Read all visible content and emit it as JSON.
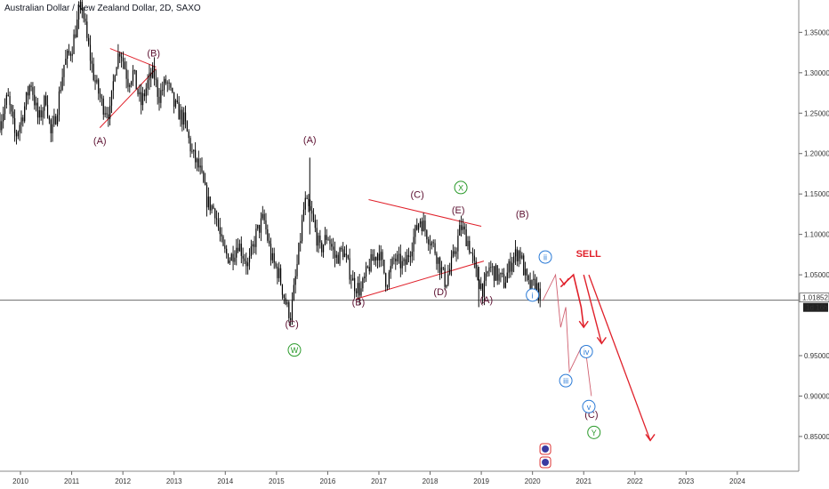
{
  "header": {
    "title": "Australian Dollar / New Zealand Dollar, 2D, SAXO"
  },
  "price_axis": {
    "current_price": "1.01852",
    "countdown": "1d 16h"
  },
  "colors": {
    "candles": "#000000",
    "wave_label": "#5c1030",
    "trendline": "#e0202a",
    "projection": "#e0202a",
    "projection_faint": "#d06070",
    "circle_green": "#2a9a2a",
    "circle_blue": "#2a7ad6",
    "sell": "#e0202a",
    "price_line": "#555555"
  },
  "chart_data": {
    "type": "candlestick",
    "title": "Australian Dollar / New Zealand Dollar, 2D, SAXO",
    "xlim": [
      2009.6,
      2025.2
    ],
    "ylim": [
      0.807,
      1.39
    ],
    "x_ticks": [
      {
        "x": 2010,
        "label": "2010"
      },
      {
        "x": 2011,
        "label": "2011"
      },
      {
        "x": 2012,
        "label": "2012"
      },
      {
        "x": 2013,
        "label": "2013"
      },
      {
        "x": 2014,
        "label": "2014"
      },
      {
        "x": 2015,
        "label": "2015"
      },
      {
        "x": 2016,
        "label": "2016"
      },
      {
        "x": 2017,
        "label": "2017"
      },
      {
        "x": 2018,
        "label": "2018"
      },
      {
        "x": 2019,
        "label": "2019"
      },
      {
        "x": 2020,
        "label": "2020"
      },
      {
        "x": 2021,
        "label": "2021"
      },
      {
        "x": 2022,
        "label": "2022"
      },
      {
        "x": 2023,
        "label": "2023"
      },
      {
        "x": 2024,
        "label": "2024"
      }
    ],
    "y_ticks": [
      {
        "y": 1.35,
        "label": "1.35000"
      },
      {
        "y": 1.3,
        "label": "1.30000"
      },
      {
        "y": 1.25,
        "label": "1.25000"
      },
      {
        "y": 1.2,
        "label": "1.20000"
      },
      {
        "y": 1.15,
        "label": "1.15000"
      },
      {
        "y": 1.1,
        "label": "1.10000"
      },
      {
        "y": 1.05,
        "label": "1.05000"
      },
      {
        "y": 0.95,
        "label": "0.95000"
      },
      {
        "y": 0.9,
        "label": "0.90000"
      },
      {
        "y": 0.85,
        "label": "0.85000"
      }
    ],
    "price_path": [
      [
        2009.6,
        1.24
      ],
      [
        2009.75,
        1.27
      ],
      [
        2009.9,
        1.22
      ],
      [
        2010.05,
        1.25
      ],
      [
        2010.2,
        1.29
      ],
      [
        2010.35,
        1.24
      ],
      [
        2010.5,
        1.27
      ],
      [
        2010.6,
        1.22
      ],
      [
        2010.7,
        1.25
      ],
      [
        2010.85,
        1.31
      ],
      [
        2011.0,
        1.33
      ],
      [
        2011.1,
        1.36
      ],
      [
        2011.2,
        1.385
      ],
      [
        2011.3,
        1.34
      ],
      [
        2011.45,
        1.29
      ],
      [
        2011.6,
        1.26
      ],
      [
        2011.75,
        1.25
      ],
      [
        2011.85,
        1.31
      ],
      [
        2011.95,
        1.33
      ],
      [
        2012.1,
        1.29
      ],
      [
        2012.2,
        1.3
      ],
      [
        2012.35,
        1.26
      ],
      [
        2012.5,
        1.29
      ],
      [
        2012.6,
        1.3
      ],
      [
        2012.7,
        1.27
      ],
      [
        2012.85,
        1.29
      ],
      [
        2013.0,
        1.26
      ],
      [
        2013.2,
        1.24
      ],
      [
        2013.35,
        1.2
      ],
      [
        2013.5,
        1.18
      ],
      [
        2013.65,
        1.14
      ],
      [
        2013.8,
        1.13
      ],
      [
        2013.95,
        1.08
      ],
      [
        2014.1,
        1.07
      ],
      [
        2014.25,
        1.09
      ],
      [
        2014.45,
        1.06
      ],
      [
        2014.6,
        1.1
      ],
      [
        2014.75,
        1.12
      ],
      [
        2014.9,
        1.07
      ],
      [
        2015.05,
        1.05
      ],
      [
        2015.2,
        1.01
      ],
      [
        2015.28,
        1.0
      ],
      [
        2015.4,
        1.06
      ],
      [
        2015.55,
        1.14
      ],
      [
        2015.7,
        1.12
      ],
      [
        2015.85,
        1.08
      ],
      [
        2016.0,
        1.1
      ],
      [
        2016.15,
        1.07
      ],
      [
        2016.3,
        1.08
      ],
      [
        2016.5,
        1.04
      ],
      [
        2016.65,
        1.03
      ],
      [
        2016.8,
        1.06
      ],
      [
        2017.0,
        1.08
      ],
      [
        2017.15,
        1.04
      ],
      [
        2017.3,
        1.07
      ],
      [
        2017.5,
        1.06
      ],
      [
        2017.65,
        1.09
      ],
      [
        2017.8,
        1.12
      ],
      [
        2017.95,
        1.1
      ],
      [
        2018.1,
        1.08
      ],
      [
        2018.3,
        1.04
      ],
      [
        2018.45,
        1.07
      ],
      [
        2018.6,
        1.11
      ],
      [
        2018.75,
        1.09
      ],
      [
        2018.9,
        1.05
      ],
      [
        2019.05,
        1.03
      ],
      [
        2019.15,
        1.06
      ],
      [
        2019.3,
        1.05
      ],
      [
        2019.45,
        1.04
      ],
      [
        2019.6,
        1.07
      ],
      [
        2019.75,
        1.08
      ],
      [
        2019.85,
        1.05
      ],
      [
        2019.95,
        1.03
      ],
      [
        2020.05,
        1.04
      ],
      [
        2020.18,
        1.018
      ]
    ],
    "annotations": {
      "wave_labels": [
        {
          "text": "(B)",
          "x": 2012.6,
          "y": 1.32
        },
        {
          "text": "(A)",
          "x": 2011.55,
          "y": 1.212
        },
        {
          "text": "(A)",
          "x": 2015.65,
          "y": 1.213
        },
        {
          "text": "(C)",
          "x": 2015.3,
          "y": 0.985
        },
        {
          "text": "(B)",
          "x": 2016.6,
          "y": 1.012
        },
        {
          "text": "(C)",
          "x": 2017.75,
          "y": 1.145
        },
        {
          "text": "(E)",
          "x": 2018.55,
          "y": 1.126
        },
        {
          "text": "(D)",
          "x": 2018.2,
          "y": 1.025
        },
        {
          "text": "(A)",
          "x": 2019.1,
          "y": 1.015
        },
        {
          "text": "(B)",
          "x": 2019.8,
          "y": 1.121
        },
        {
          "text": "(C)",
          "x": 2021.15,
          "y": 0.873
        }
      ],
      "circle_labels": [
        {
          "text": "W",
          "x": 2015.35,
          "y": 0.957,
          "color": "#2a9a2a"
        },
        {
          "text": "X",
          "x": 2018.6,
          "y": 1.158,
          "color": "#2a9a2a"
        },
        {
          "text": "Y",
          "x": 2021.2,
          "y": 0.855,
          "color": "#2a9a2a"
        },
        {
          "text": "ii",
          "x": 2020.25,
          "y": 1.072,
          "color": "#2a7ad6"
        },
        {
          "text": "i",
          "x": 2020.0,
          "y": 1.025,
          "color": "#2a7ad6"
        },
        {
          "text": "iii",
          "x": 2020.65,
          "y": 0.919,
          "color": "#2a7ad6"
        },
        {
          "text": "iv",
          "x": 2021.05,
          "y": 0.955,
          "color": "#2a7ad6"
        },
        {
          "text": "v",
          "x": 2021.1,
          "y": 0.887,
          "color": "#2a7ad6"
        }
      ],
      "sell_text": "SELL",
      "sell_at": {
        "x": 2020.85,
        "y": 1.072
      }
    }
  }
}
